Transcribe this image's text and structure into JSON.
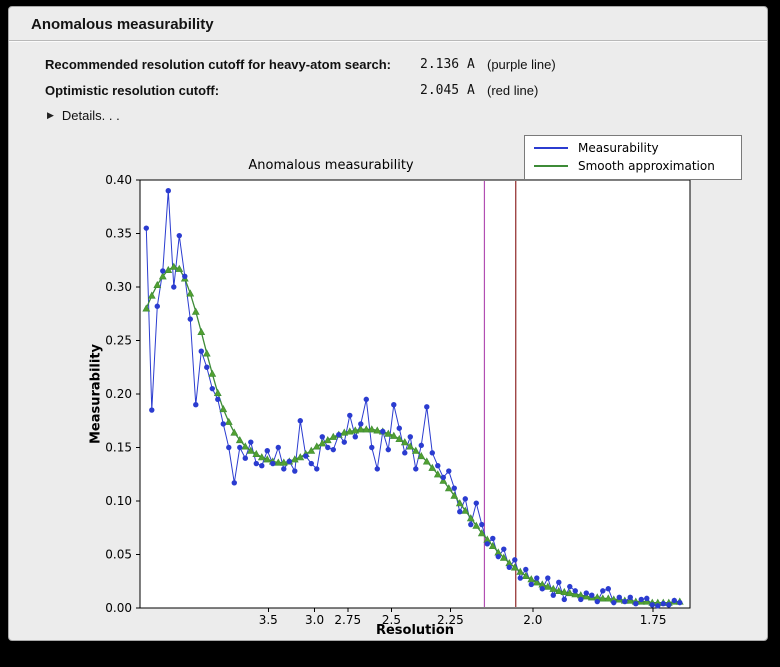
{
  "window": {
    "title": "Anomalous measurability"
  },
  "icons": {
    "disclosure": "▶"
  },
  "info": {
    "rows": [
      {
        "label": "Recommended resolution cutoff for heavy-atom search:",
        "value": "2.136 A",
        "note": "(purple line)"
      },
      {
        "label": "Optimistic resolution cutoff:",
        "value": "2.045 A",
        "note": "(red line)"
      }
    ],
    "details_label": "Details. . ."
  },
  "chart_data": {
    "type": "line",
    "title": "Anomalous measurability",
    "xlabel": "Resolution",
    "ylabel": "Measurability",
    "x_axis": {
      "unit": "A",
      "scale": "1/d^2",
      "range_inv_d2": [
        0,
        0.35
      ],
      "ticks": [
        {
          "label": "3.5",
          "d": 3.5
        },
        {
          "label": "3.0",
          "d": 3.0
        },
        {
          "label": "2.75",
          "d": 2.75
        },
        {
          "label": "2.5",
          "d": 2.5
        },
        {
          "label": "2.25",
          "d": 2.25
        },
        {
          "label": "2.0",
          "d": 2.0
        },
        {
          "label": "1.75",
          "d": 1.75
        }
      ]
    },
    "y_axis": {
      "range": [
        0,
        0.4
      ],
      "ticks": [
        0,
        0.05,
        0.1,
        0.15,
        0.2,
        0.25,
        0.3,
        0.35,
        0.4
      ]
    },
    "x_inv_d2": [
      0.004,
      0.0075,
      0.011,
      0.0145,
      0.018,
      0.0215,
      0.025,
      0.0285,
      0.032,
      0.0355,
      0.039,
      0.0425,
      0.046,
      0.0495,
      0.053,
      0.0565,
      0.06,
      0.0635,
      0.067,
      0.0705,
      0.074,
      0.0775,
      0.081,
      0.0845,
      0.088,
      0.0915,
      0.095,
      0.0985,
      0.102,
      0.1055,
      0.109,
      0.1125,
      0.116,
      0.1195,
      0.123,
      0.1265,
      0.13,
      0.1335,
      0.137,
      0.1405,
      0.144,
      0.1475,
      0.151,
      0.1545,
      0.158,
      0.1615,
      0.165,
      0.1685,
      0.172,
      0.1755,
      0.179,
      0.1825,
      0.186,
      0.1895,
      0.193,
      0.1965,
      0.2,
      0.2035,
      0.207,
      0.2105,
      0.214,
      0.2175,
      0.221,
      0.2245,
      0.228,
      0.2315,
      0.235,
      0.2385,
      0.242,
      0.2455,
      0.249,
      0.2525,
      0.256,
      0.2595,
      0.263,
      0.2665,
      0.27,
      0.2735,
      0.277,
      0.2805,
      0.284,
      0.2875,
      0.291,
      0.2945,
      0.298,
      0.3015,
      0.305,
      0.3085,
      0.312,
      0.3155,
      0.319,
      0.3225,
      0.326,
      0.3295,
      0.333,
      0.3365,
      0.34,
      0.3435
    ],
    "series": [
      {
        "name": "Measurability",
        "color": "#2b3cd0",
        "marker": "circle",
        "values": [
          0.355,
          0.185,
          0.282,
          0.315,
          0.39,
          0.3,
          0.348,
          0.31,
          0.27,
          0.19,
          0.24,
          0.225,
          0.205,
          0.195,
          0.172,
          0.15,
          0.117,
          0.15,
          0.14,
          0.155,
          0.135,
          0.133,
          0.147,
          0.135,
          0.15,
          0.13,
          0.137,
          0.128,
          0.175,
          0.142,
          0.135,
          0.13,
          0.16,
          0.15,
          0.148,
          0.162,
          0.155,
          0.18,
          0.16,
          0.172,
          0.195,
          0.15,
          0.13,
          0.165,
          0.148,
          0.19,
          0.168,
          0.145,
          0.16,
          0.13,
          0.152,
          0.188,
          0.145,
          0.133,
          0.122,
          0.128,
          0.112,
          0.09,
          0.102,
          0.078,
          0.098,
          0.078,
          0.06,
          0.065,
          0.048,
          0.055,
          0.038,
          0.045,
          0.028,
          0.036,
          0.022,
          0.028,
          0.018,
          0.028,
          0.012,
          0.024,
          0.008,
          0.02,
          0.016,
          0.008,
          0.014,
          0.012,
          0.006,
          0.016,
          0.018,
          0.005,
          0.01,
          0.006,
          0.01,
          0.004,
          0.008,
          0.009,
          0.003,
          0.002,
          0.004,
          0.003,
          0.007,
          0.005
        ]
      },
      {
        "name": "Smooth approximation",
        "color": "#3d8b37",
        "marker": "triangle",
        "marker_fill": "#52a031",
        "values": [
          0.28,
          0.292,
          0.302,
          0.31,
          0.316,
          0.319,
          0.317,
          0.308,
          0.294,
          0.277,
          0.258,
          0.238,
          0.219,
          0.201,
          0.186,
          0.174,
          0.164,
          0.157,
          0.151,
          0.147,
          0.144,
          0.141,
          0.139,
          0.137,
          0.136,
          0.136,
          0.137,
          0.139,
          0.141,
          0.144,
          0.147,
          0.151,
          0.154,
          0.157,
          0.16,
          0.162,
          0.164,
          0.165,
          0.166,
          0.167,
          0.167,
          0.167,
          0.166,
          0.165,
          0.163,
          0.161,
          0.158,
          0.155,
          0.151,
          0.147,
          0.142,
          0.137,
          0.131,
          0.125,
          0.119,
          0.112,
          0.105,
          0.098,
          0.091,
          0.084,
          0.077,
          0.07,
          0.064,
          0.058,
          0.052,
          0.047,
          0.042,
          0.038,
          0.034,
          0.03,
          0.027,
          0.024,
          0.022,
          0.02,
          0.018,
          0.016,
          0.015,
          0.014,
          0.013,
          0.012,
          0.011,
          0.01,
          0.01,
          0.009,
          0.009,
          0.008,
          0.008,
          0.007,
          0.007,
          0.006,
          0.006,
          0.006,
          0.005,
          0.005,
          0.005,
          0.005,
          0.006,
          0.006
        ]
      }
    ],
    "vlines": [
      {
        "label": "purple line",
        "resolution_A": 2.136,
        "color": "#b24fb2"
      },
      {
        "label": "red line",
        "resolution_A": 2.045,
        "color": "#8f2727"
      }
    ],
    "legend": {
      "position": "top-right",
      "entries": [
        "Measurability",
        "Smooth approximation"
      ]
    }
  }
}
